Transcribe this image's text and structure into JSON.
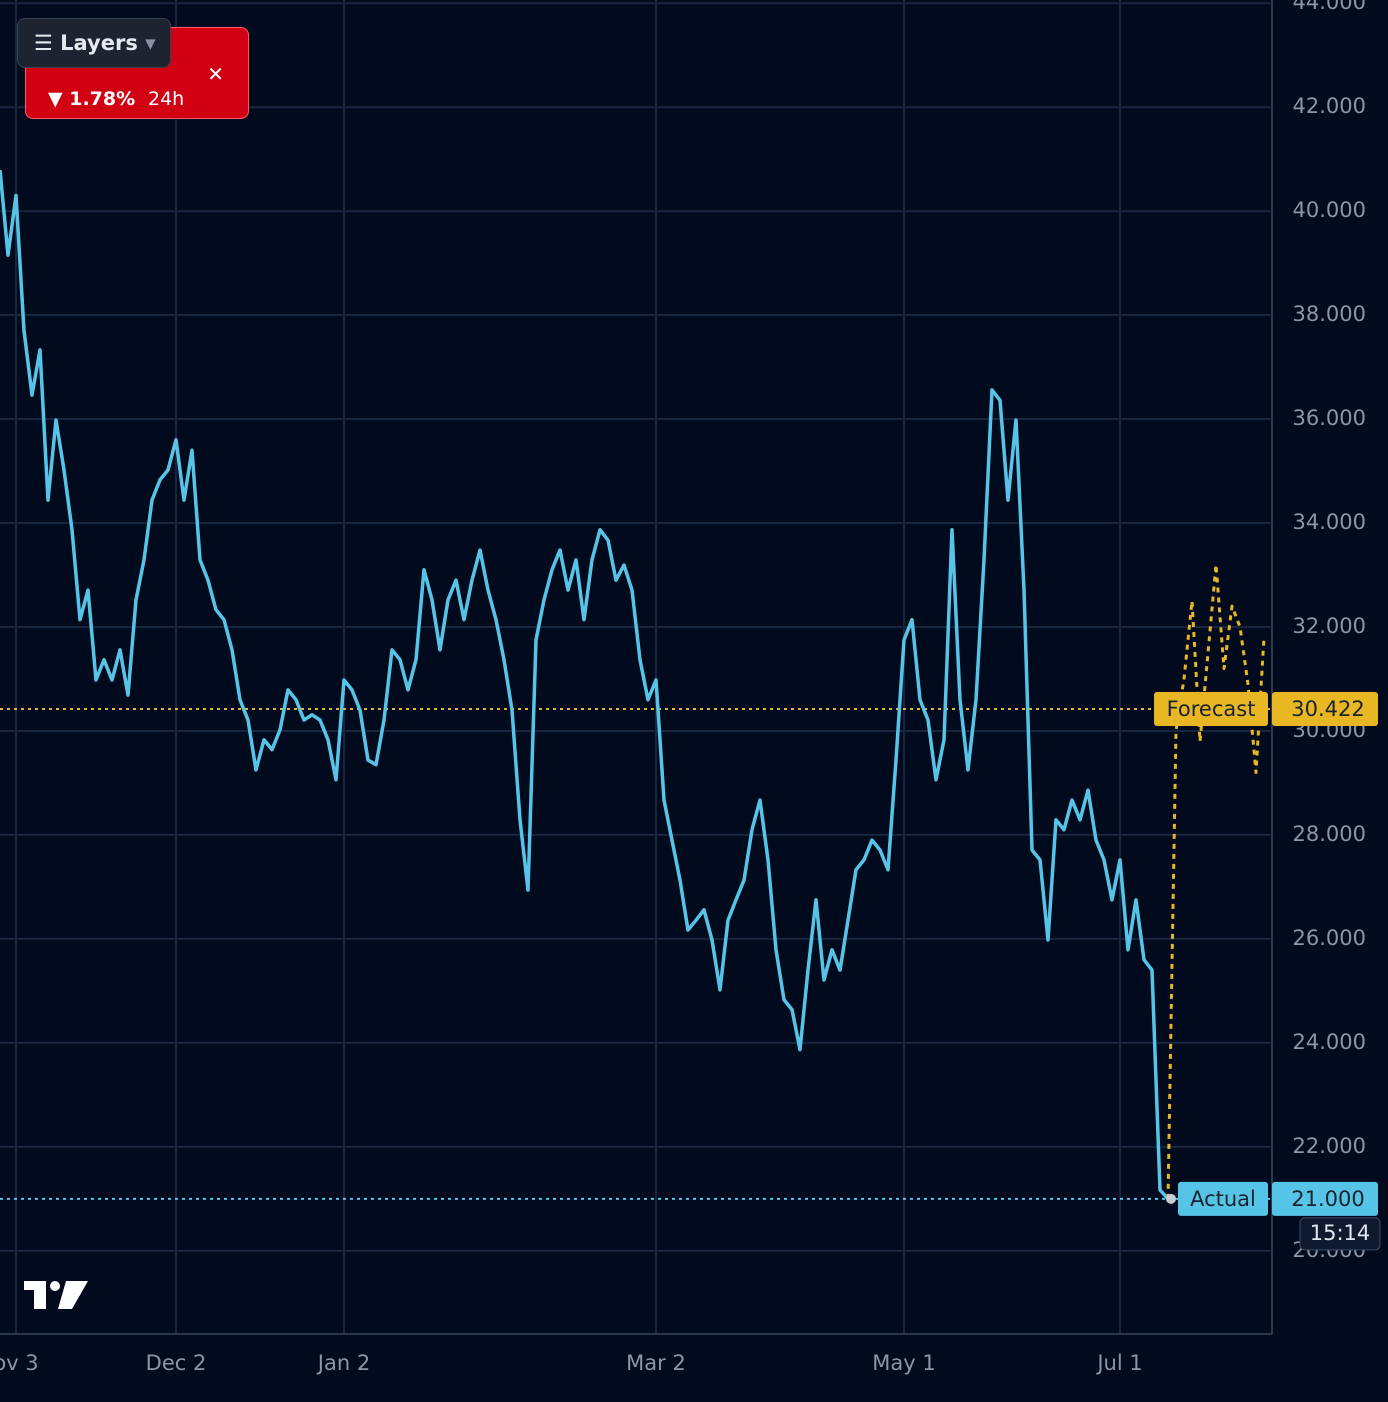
{
  "chart_data": {
    "type": "line",
    "x": [
      0,
      1,
      2,
      3,
      4,
      5,
      6,
      7,
      8,
      9,
      10,
      11,
      12,
      13,
      14,
      15,
      16,
      17,
      18,
      19,
      20,
      21,
      22,
      23,
      24,
      25,
      26,
      27,
      28,
      29,
      30,
      31,
      32,
      33,
      34,
      35,
      36,
      37,
      38,
      39,
      40,
      41,
      42,
      43,
      44,
      45,
      46,
      47,
      48,
      49,
      50,
      51,
      52,
      53,
      54,
      55,
      56,
      57,
      58,
      59,
      60,
      61,
      62,
      63,
      64,
      65,
      66,
      67,
      68,
      69,
      70,
      71,
      72,
      73,
      74,
      75,
      76,
      77,
      78,
      79,
      80,
      81,
      82,
      83,
      84,
      85,
      86,
      87,
      88,
      89,
      90,
      91,
      92,
      93,
      94,
      95,
      96,
      97,
      98,
      99,
      100,
      101,
      102,
      103,
      104,
      105,
      106,
      107,
      108,
      109,
      110,
      111,
      112,
      113,
      114,
      115,
      116,
      117,
      118,
      119,
      120,
      121,
      122,
      123,
      124,
      125,
      126,
      127,
      128,
      129,
      130,
      131,
      132,
      133,
      134,
      135,
      136,
      137,
      138,
      139,
      140,
      141,
      142,
      143,
      144,
      145,
      146,
      147,
      148,
      149,
      150,
      151,
      152,
      153,
      154,
      155,
      156,
      157,
      158
    ],
    "series": [
      {
        "name": "Actual",
        "color": "#56c4e6",
        "style": "solid",
        "values": [
          40790,
          39150,
          40300,
          37700,
          36460,
          37330,
          34440,
          35980,
          35020,
          33870,
          32140,
          32710,
          30980,
          31370,
          30980,
          31560,
          30690,
          32520,
          33290,
          34440,
          34830,
          35020,
          35600,
          34440,
          35400,
          33290,
          32900,
          32330,
          32140,
          31560,
          30600,
          30210,
          29250,
          29830,
          29640,
          30020,
          30790,
          30600,
          30210,
          30310,
          30210,
          29830,
          29060,
          30980,
          30790,
          30400,
          29440,
          29350,
          30210,
          31560,
          31370,
          30790,
          31370,
          33100,
          32520,
          31560,
          32520,
          32900,
          32140,
          32900,
          33480,
          32710,
          32140,
          31370,
          30400,
          28290,
          26940,
          31750,
          32520,
          33100,
          33480,
          32710,
          33290,
          32140,
          33290,
          33870,
          33670,
          32900,
          33190,
          32710,
          31370,
          30600,
          30980,
          28670,
          27900,
          27130,
          26170,
          26360,
          26560,
          25980,
          25020,
          26360,
          26750,
          27130,
          28100,
          28670,
          27520,
          25790,
          24830,
          24640,
          23870,
          25400,
          26750,
          25210,
          25790,
          25400,
          26360,
          27330,
          27520,
          27900,
          27710,
          27330,
          29440,
          31750,
          32140,
          30600,
          30210,
          29060,
          29830,
          33870,
          30600,
          29250,
          30600,
          33290,
          36560,
          36360,
          34440,
          35980,
          32710,
          27710,
          27520,
          25980,
          28290,
          28100,
          28670,
          28290,
          28860,
          27900,
          27520,
          26750,
          27520,
          25790,
          26750,
          25600,
          25400,
          21170,
          21000,
          null,
          null,
          null,
          null,
          null,
          null,
          null,
          null,
          null,
          null,
          null,
          null
        ]
      },
      {
        "name": "Forecast",
        "color": "#e8b723",
        "style": "dotted",
        "values": [
          null,
          null,
          null,
          null,
          null,
          null,
          null,
          null,
          null,
          null,
          null,
          null,
          null,
          null,
          null,
          null,
          null,
          null,
          null,
          null,
          null,
          null,
          null,
          null,
          null,
          null,
          null,
          null,
          null,
          null,
          null,
          null,
          null,
          null,
          null,
          null,
          null,
          null,
          null,
          null,
          null,
          null,
          null,
          null,
          null,
          null,
          null,
          null,
          null,
          null,
          null,
          null,
          null,
          null,
          null,
          null,
          null,
          null,
          null,
          null,
          null,
          null,
          null,
          null,
          null,
          null,
          null,
          null,
          null,
          null,
          null,
          null,
          null,
          null,
          null,
          null,
          null,
          null,
          null,
          null,
          null,
          null,
          null,
          null,
          null,
          null,
          null,
          null,
          null,
          null,
          null,
          null,
          null,
          null,
          null,
          null,
          null,
          null,
          null,
          null,
          null,
          null,
          null,
          null,
          null,
          null,
          null,
          null,
          null,
          null,
          null,
          null,
          null,
          null,
          null,
          null,
          null,
          null,
          null,
          null,
          null,
          null,
          null,
          null,
          null,
          null,
          null,
          null,
          null,
          null,
          null,
          null,
          null,
          null,
          null,
          null,
          null,
          null,
          null,
          null,
          null,
          null,
          null,
          null,
          null,
          null,
          21000,
          30000,
          31000,
          32500,
          29800,
          31500,
          33200,
          31200,
          32400,
          32000,
          30900,
          29200,
          31800
        ]
      }
    ],
    "markers": [
      {
        "name": "Forecast",
        "value": 30422,
        "value_label": "30.422",
        "color": "#e8b723"
      },
      {
        "name": "Actual",
        "value": 21000,
        "value_label": "21.000",
        "color": "#56c4e6"
      }
    ],
    "countdown": "15:14",
    "xlim": [
      0,
      159
    ],
    "xticks": [
      {
        "value": 2,
        "label": "ov 3"
      },
      {
        "value": 22,
        "label": "Dec 2"
      },
      {
        "value": 43,
        "label": "Jan 2"
      },
      {
        "value": 82,
        "label": "Mar 2"
      },
      {
        "value": 113,
        "label": "May 1"
      },
      {
        "value": 140,
        "label": "Jul 1"
      }
    ],
    "ylim": [
      18400,
      44060
    ],
    "yticks": [
      {
        "value": 20000,
        "label": "20.000"
      },
      {
        "value": 22000,
        "label": "22.000"
      },
      {
        "value": 24000,
        "label": "24.000"
      },
      {
        "value": 26000,
        "label": "26.000"
      },
      {
        "value": 28000,
        "label": "28.000"
      },
      {
        "value": 30000,
        "label": "30.000"
      },
      {
        "value": 32000,
        "label": "32.000"
      },
      {
        "value": 34000,
        "label": "34.000"
      },
      {
        "value": 36000,
        "label": "36.000"
      },
      {
        "value": 38000,
        "label": "38.000"
      },
      {
        "value": 40000,
        "label": "40.000"
      },
      {
        "value": 42000,
        "label": "42.000"
      },
      {
        "value": 44000,
        "label": "44.000"
      }
    ],
    "grid": true
  },
  "ticker": {
    "change": "1.78%",
    "period": "24h",
    "close": "✕"
  },
  "toolbar": {
    "button": "Layers"
  }
}
